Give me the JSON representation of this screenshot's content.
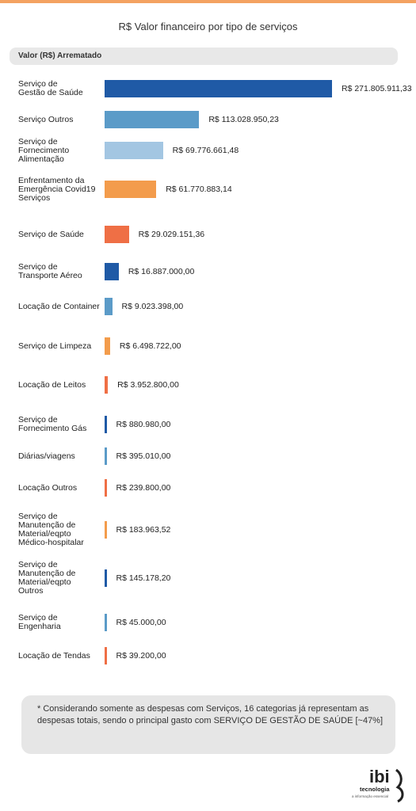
{
  "header": {
    "title": "R$ Valor financeiro por tipo de serviços",
    "column_label": "Valor (R$) Arrematado"
  },
  "chart_data": {
    "type": "bar",
    "orientation": "horizontal",
    "title": "R$ Valor financeiro por tipo de serviços",
    "series_label": "Valor (R$) Arrematado",
    "categories": [
      "Serviço de\nGestão de Saúde",
      "Serviço Outros",
      "Serviço de\nFornecimento\nAlimentação",
      "Enfrentamento da\nEmergência Covid19\nServiços",
      "Serviço de Saúde",
      "Serviço de\nTransporte Aéreo",
      "Locação de Container",
      "Serviço de Limpeza",
      "Locação de Leitos",
      "Serviço de\nFornecimento Gás",
      "Diárias/viagens",
      "Locação Outros",
      "Serviço de\nManutenção de\nMaterial/eqpto\nMédico-hospitalar",
      "Serviço de\nManutenção de\nMaterial/eqpto\nOutros",
      "Serviço de\nEngenharia",
      "Locação de Tendas"
    ],
    "values": [
      271805911.33,
      113028950.23,
      69776661.48,
      61770883.14,
      29029151.36,
      16887000.0,
      9023398.0,
      6498722.0,
      3952800.0,
      880980.0,
      395010.0,
      239800.0,
      183963.52,
      145178.2,
      45000.0,
      39200.0
    ],
    "value_labels": [
      "R$ 271.805.911,33",
      "R$ 113.028.950,23",
      "R$ 69.776.661,48",
      "R$ 61.770.883,14",
      "R$ 29.029.151,36",
      "R$ 16.887.000,00",
      "R$ 9.023.398,00",
      "R$ 6.498.722,00",
      "R$ 3.952.800,00",
      "R$ 880.980,00",
      "R$ 395.010,00",
      "R$ 239.800,00",
      "R$ 183.963,52",
      "R$ 145.178,20",
      "R$ 45.000,00",
      "R$ 39.200,00"
    ],
    "colors": [
      "#1f5aa6",
      "#5b9bc8",
      "#a3c6e2",
      "#f39c4c",
      "#ef6f45",
      "#1f5aa6",
      "#5b9bc8",
      "#f39c4c",
      "#ef6f45",
      "#1f5aa6",
      "#5b9bc8",
      "#ef6f45",
      "#f39c4c",
      "#1f5aa6",
      "#5b9bc8",
      "#ef6f45"
    ],
    "grid": false,
    "legend": "none"
  },
  "note": {
    "text": "* Considerando somente as despesas com Serviços, 16 categorias já representam as despesas totais, sendo o principal gasto com SERVIÇO DE GESTÃO DE SAÚDE [~47%]"
  },
  "logo": {
    "brand": "ibi",
    "name": "tecnologia",
    "tagline": "a informação essencial"
  }
}
